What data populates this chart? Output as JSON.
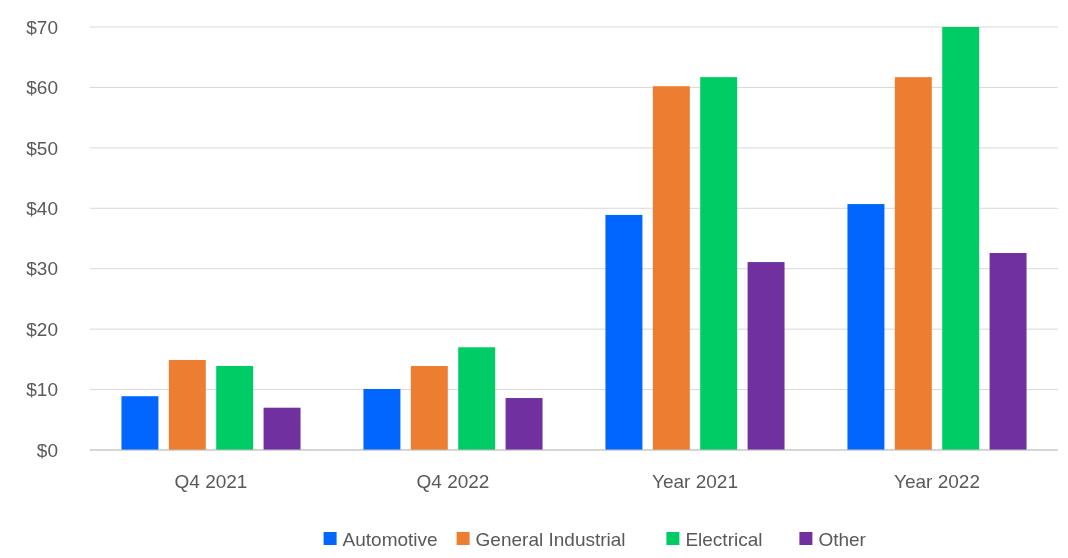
{
  "chart_data": {
    "type": "bar",
    "categories": [
      "Q4 2021",
      "Q4 2022",
      "Year 2021",
      "Year 2022"
    ],
    "series": [
      {
        "name": "Automotive",
        "color": "#0066ff",
        "values": [
          8.9,
          10.1,
          38.9,
          40.7
        ]
      },
      {
        "name": "General Industrial",
        "color": "#ed7d31",
        "values": [
          14.9,
          13.9,
          60.2,
          61.7
        ]
      },
      {
        "name": "Electrical",
        "color": "#00cc66",
        "values": [
          13.9,
          17.0,
          61.7,
          70.0
        ]
      },
      {
        "name": "Other",
        "color": "#7030a0",
        "values": [
          7.0,
          8.6,
          31.1,
          32.6
        ]
      }
    ],
    "ylim": [
      0,
      70
    ],
    "yticks": [
      {
        "value": 0,
        "label": "$0"
      },
      {
        "value": 10,
        "label": "$10"
      },
      {
        "value": 20,
        "label": "$20"
      },
      {
        "value": 30,
        "label": "$30"
      },
      {
        "value": 40,
        "label": "$40"
      },
      {
        "value": 50,
        "label": "$50"
      },
      {
        "value": 60,
        "label": "$60"
      },
      {
        "value": 70,
        "label": "$70"
      }
    ],
    "grid": "y",
    "legend": "bottom"
  }
}
